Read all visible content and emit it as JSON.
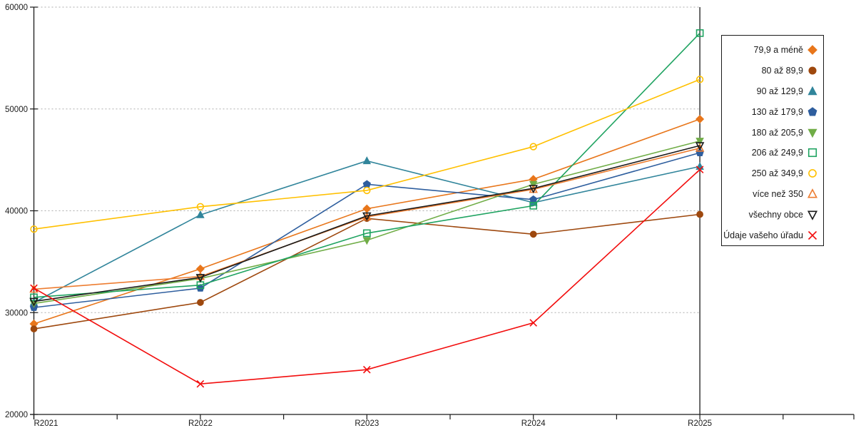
{
  "chart_data": {
    "type": "line",
    "title": "",
    "xlabel": "",
    "ylabel": "",
    "categories": [
      "R2021",
      "R2022",
      "R2023",
      "R2024",
      "R2025"
    ],
    "y_axis": {
      "min": 20000,
      "max": 60000,
      "step": 10000,
      "tick_labels": [
        "20000",
        "30000",
        "40000",
        "50000",
        "60000"
      ]
    },
    "grid": "horizontal-dashed",
    "legend_position": "right",
    "series": [
      {
        "name": "79,9 a méně",
        "color": "#E8761B",
        "marker": "diamond",
        "marker_fill": "filled",
        "values": [
          28900,
          34300,
          40200,
          43100,
          49000
        ]
      },
      {
        "name": "80 až 89,9",
        "color": "#9E480E",
        "marker": "circle",
        "marker_fill": "filled",
        "values": [
          28400,
          31000,
          39250,
          37700,
          39650
        ]
      },
      {
        "name": "90 až 129,9",
        "color": "#31859B",
        "marker": "triangle-up",
        "marker_fill": "filled",
        "values": [
          31000,
          39600,
          44900,
          40800,
          44350
        ]
      },
      {
        "name": "130 až 179,9",
        "color": "#2E5E9E",
        "marker": "pentagon",
        "marker_fill": "filled",
        "values": [
          30500,
          32400,
          42600,
          41100,
          45700
        ]
      },
      {
        "name": "180 až 205,9",
        "color": "#70AD47",
        "marker": "triangle-down",
        "marker_fill": "filled",
        "values": [
          30900,
          33350,
          37100,
          42600,
          46850
        ]
      },
      {
        "name": "206 až 249,9",
        "color": "#1FA361",
        "marker": "square",
        "marker_fill": "outline",
        "values": [
          31500,
          32700,
          37800,
          40500,
          57450
        ]
      },
      {
        "name": "250 až 349,9",
        "color": "#FFC000",
        "marker": "circle",
        "marker_fill": "outline",
        "values": [
          38200,
          40400,
          42000,
          46300,
          52900
        ]
      },
      {
        "name": "více než 350",
        "color": "#ED7D31",
        "marker": "triangle-up",
        "marker_fill": "outline",
        "values": [
          32300,
          33550,
          39400,
          42100,
          46150
        ]
      },
      {
        "name": "všechny obce",
        "color": "#1A1A1A",
        "marker": "triangle-down",
        "marker_fill": "outline",
        "values": [
          31100,
          33450,
          39500,
          42200,
          46400
        ]
      },
      {
        "name": "Údaje vašeho úřadu",
        "color": "#F20D0D",
        "marker": "x",
        "marker_fill": "outline",
        "values": [
          32400,
          23000,
          24400,
          29000,
          44050
        ]
      }
    ],
    "gridline_color": "#ADADAD",
    "axis_color": "#1a1a1a"
  }
}
